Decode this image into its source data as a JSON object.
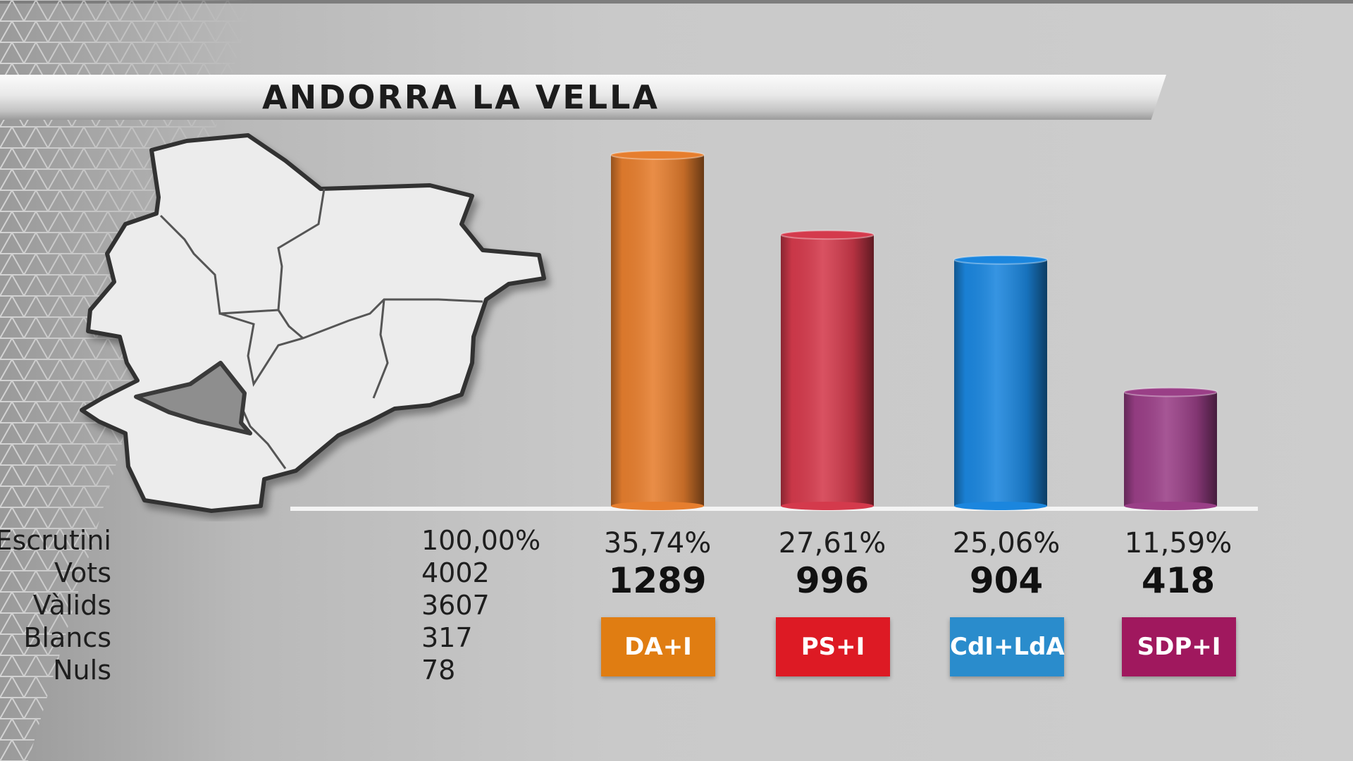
{
  "title": "ANDORRA LA VELLA",
  "stats": [
    {
      "label": "Escrutini",
      "value": "100,00%"
    },
    {
      "label": "Vots",
      "value": "4002"
    },
    {
      "label": "Vàlids",
      "value": "3607"
    },
    {
      "label": "Blancs",
      "value": "317"
    },
    {
      "label": "Nuls",
      "value": "78"
    }
  ],
  "parties": [
    {
      "name": "DA+I",
      "percent": "35,74%",
      "votes": "1289",
      "color": "#e67e2e",
      "badge_color": "#e07d12"
    },
    {
      "name": "PS+I",
      "percent": "27,61%",
      "votes": "996",
      "color": "#d43a4c",
      "badge_color": "#dd1a24"
    },
    {
      "name": "CdI+LdA",
      "percent": "25,06%",
      "votes": "904",
      "color": "#1b86de",
      "badge_color": "#2a8ccc"
    },
    {
      "name": "SDP+I",
      "percent": "11,59%",
      "votes": "418",
      "color": "#9a3f87",
      "badge_color": "#a0185e"
    }
  ],
  "chart_data": {
    "type": "bar",
    "title": "ANDORRA LA VELLA",
    "categories": [
      "DA+I",
      "PS+I",
      "CdI+LdA",
      "SDP+I"
    ],
    "values": [
      1289,
      996,
      904,
      418
    ],
    "percentages": [
      35.74,
      27.61,
      25.06,
      11.59
    ],
    "xlabel": "",
    "ylabel": "",
    "grid": false
  },
  "map": {
    "highlighted_parish": "Andorra la Vella",
    "highlight_color": "#8e8e8e",
    "base_color": "#ececec"
  }
}
